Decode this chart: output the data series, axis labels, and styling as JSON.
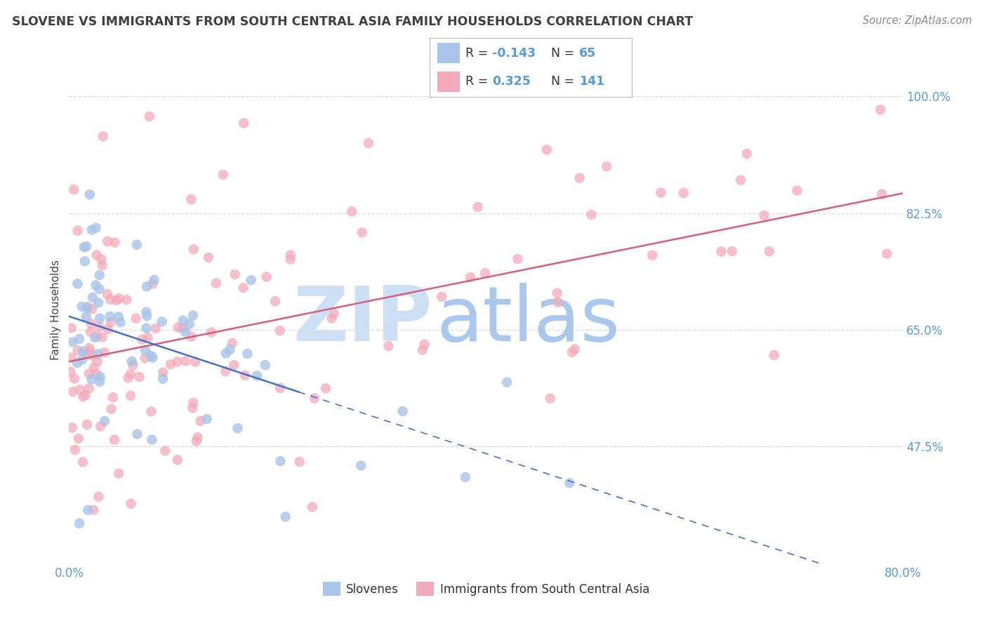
{
  "title": "SLOVENE VS IMMIGRANTS FROM SOUTH CENTRAL ASIA FAMILY HOUSEHOLDS CORRELATION CHART",
  "source": "Source: ZipAtlas.com",
  "ylabel": "Family Households",
  "x_min": 0.0,
  "x_max": 0.8,
  "y_min": 0.3,
  "y_max": 1.06,
  "x_tick_positions": [
    0.0,
    0.1,
    0.2,
    0.3,
    0.4,
    0.5,
    0.6,
    0.7,
    0.8
  ],
  "x_tick_labels": [
    "0.0%",
    "",
    "",
    "",
    "",
    "",
    "",
    "",
    "80.0%"
  ],
  "y_ticks": [
    0.475,
    0.65,
    0.825,
    1.0
  ],
  "y_tick_labels": [
    "47.5%",
    "65.0%",
    "82.5%",
    "100.0%"
  ],
  "slovene_color": "#a8c4e8",
  "immigrant_color": "#f2aaba",
  "slovene_line_color": "#4472c4",
  "immigrant_line_color": "#d4607a",
  "watermark_zip_color": "#ccdff5",
  "watermark_atlas_color": "#aac8ee",
  "background_color": "#ffffff",
  "grid_color": "#d8d8d8",
  "tick_color": "#5b9bd5",
  "title_color": "#404040",
  "source_color": "#888888",
  "legend_r_color": "#5b9bd5",
  "legend_text_color": "#333333"
}
